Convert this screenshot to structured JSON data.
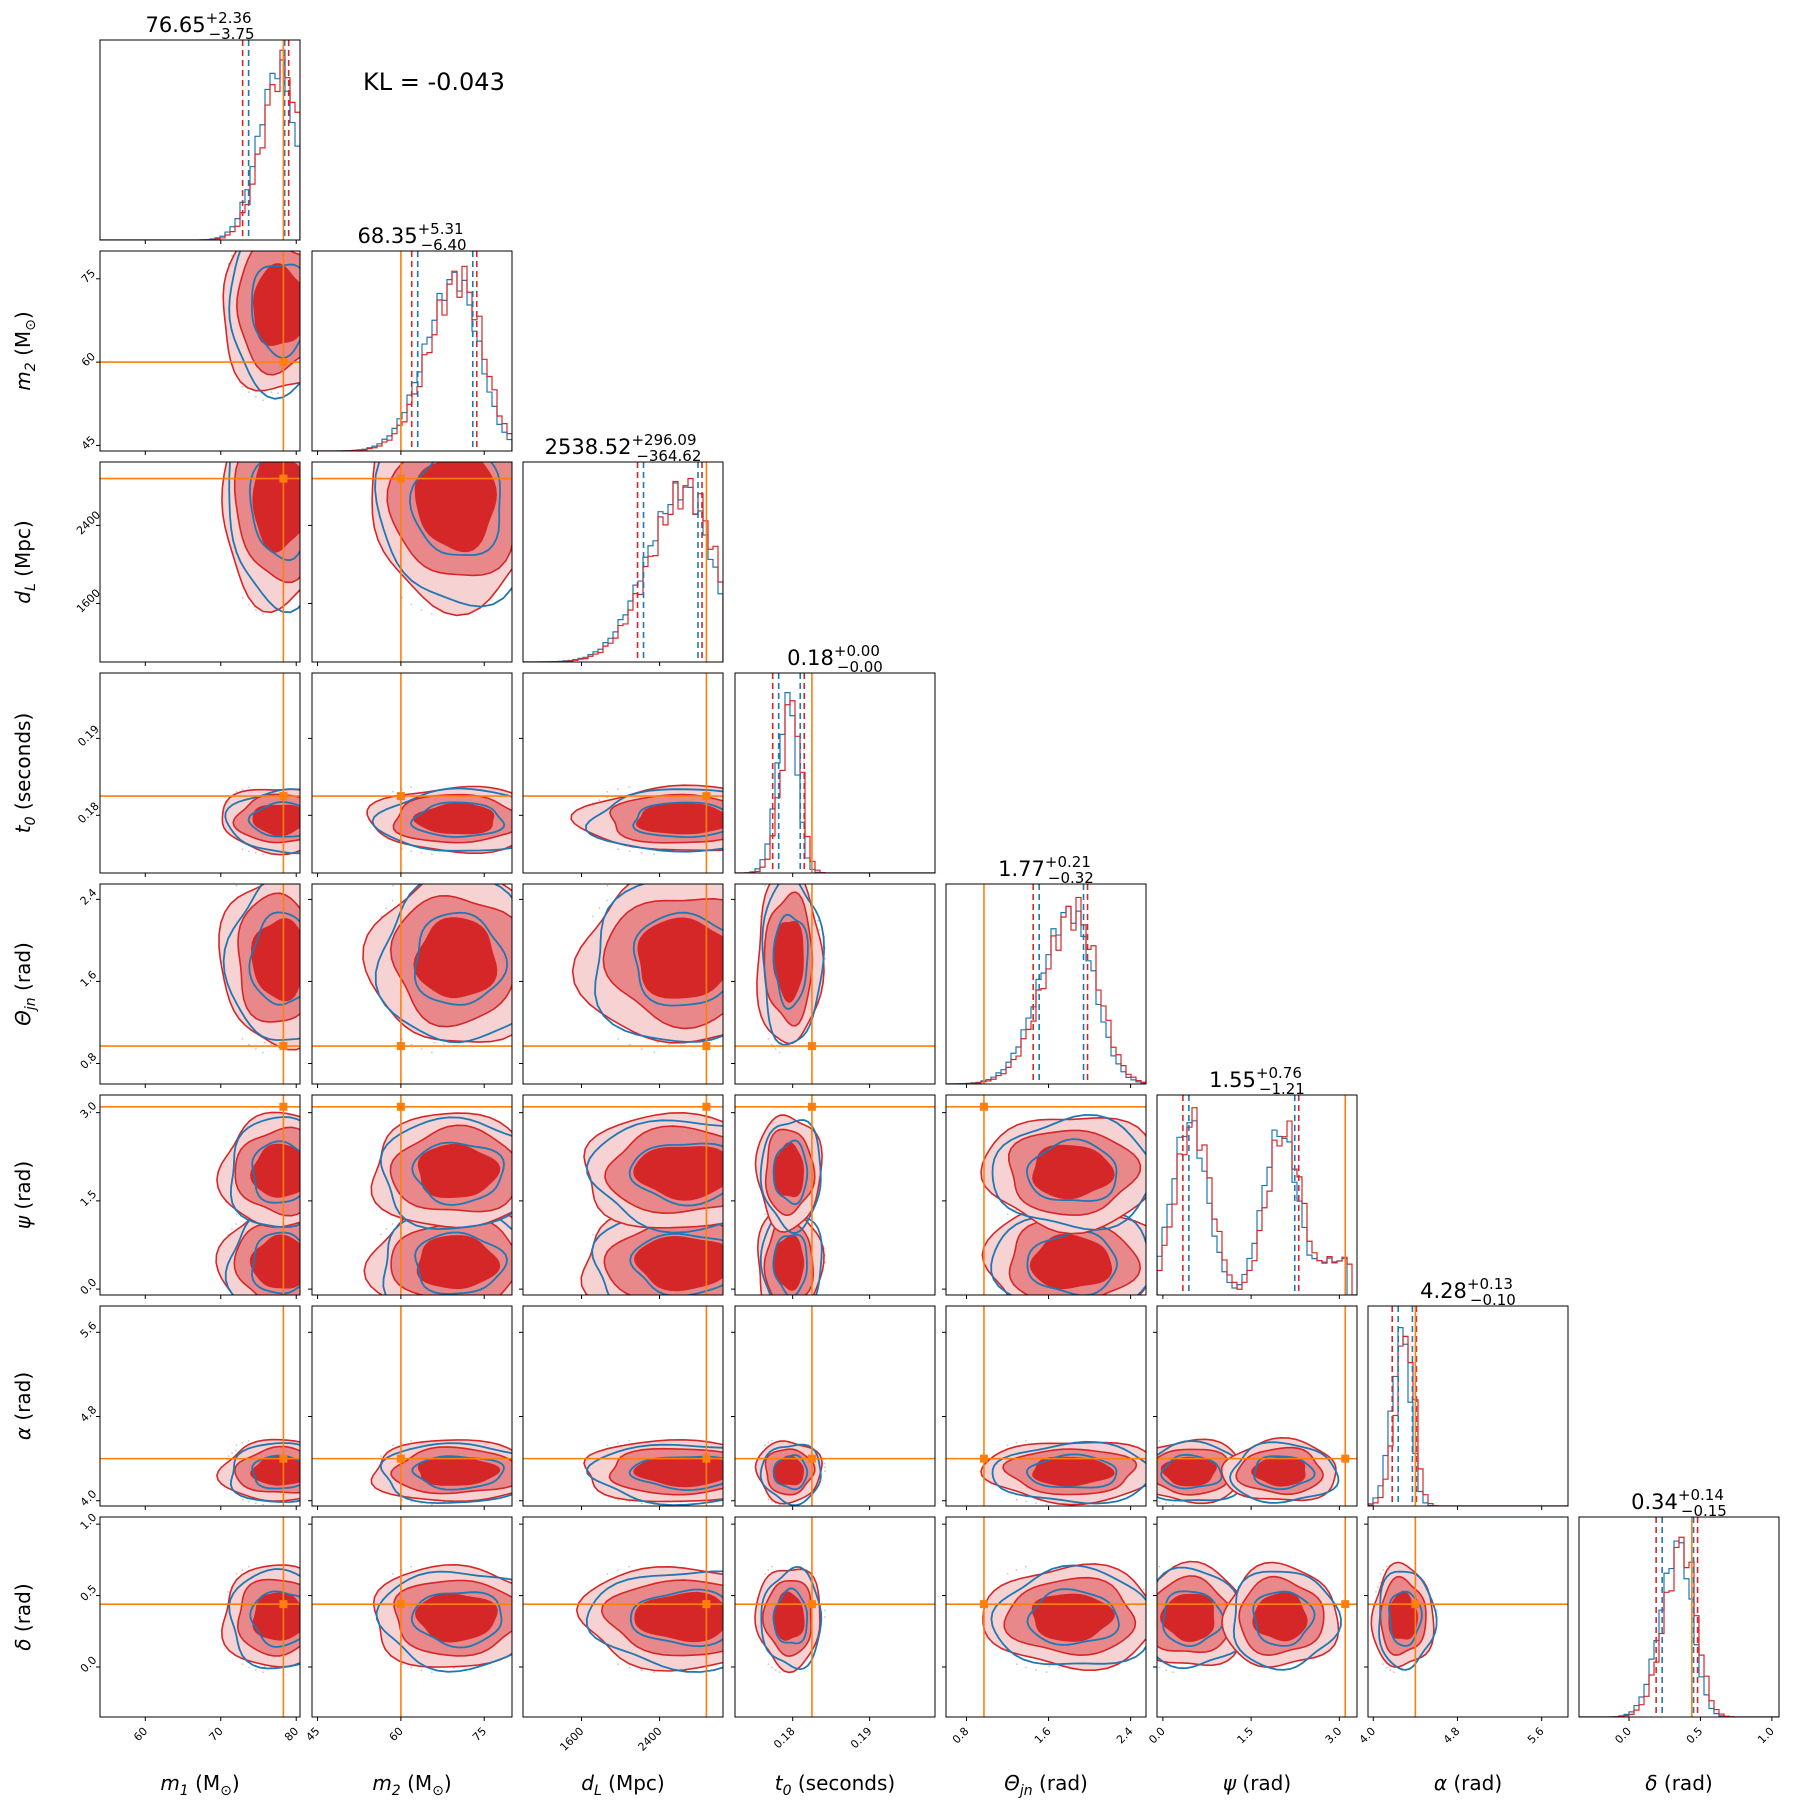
{
  "chart_data": {
    "type": "corner",
    "kl_annotation": "KL = -0.043",
    "colors": {
      "red": "#d62728",
      "red_mid": "#e8888a",
      "red_light": "#f6d2d2",
      "blue": "#1f77b4",
      "orange": "#ff7f0e"
    },
    "parameters": [
      {
        "key": "m1",
        "sym": "m",
        "sub": "1",
        "unit": "(M",
        "unit_sub": "⊙",
        "unit_end": ")",
        "range": [
          54,
          80.5
        ],
        "true": 78.3,
        "ticks": [
          60,
          70,
          80
        ],
        "tick_labels": [
          "60",
          "70",
          "80"
        ],
        "title_main": "76.65",
        "title_plus": "+2.36",
        "title_minus": "−3.75",
        "median": 76.65,
        "lo": 72.9,
        "hi": 79.0,
        "mode": 77.8,
        "sigma": 2.4,
        "bimodal": false
      },
      {
        "key": "m2",
        "sym": "m",
        "sub": "2",
        "unit": "(M",
        "unit_sub": "⊙",
        "unit_end": ")",
        "range": [
          44,
          80
        ],
        "true": 60,
        "ticks": [
          45,
          60,
          75
        ],
        "tick_labels": [
          "45",
          "60",
          "75"
        ],
        "title_main": "68.35",
        "title_plus": "+5.31",
        "title_minus": "−6.40",
        "median": 68.35,
        "lo": 61.95,
        "hi": 73.66,
        "mode": 70,
        "sigma": 4.8,
        "bimodal": false
      },
      {
        "key": "dL",
        "sym": "d",
        "sub": "L",
        "unit": "(Mpc)",
        "unit_sub": "",
        "unit_end": "",
        "range": [
          1000,
          3050
        ],
        "true": 2880,
        "ticks": [
          1600,
          2400
        ],
        "tick_labels": [
          "1600",
          "2400"
        ],
        "title_main": "2538.52",
        "title_plus": "+296.09",
        "title_minus": "−364.62",
        "median": 2538.52,
        "lo": 2173.9,
        "hi": 2834.6,
        "mode": 2650,
        "sigma": 330,
        "bimodal": false
      },
      {
        "key": "t0",
        "sym": "t",
        "sub": "0",
        "unit": "(seconds)",
        "unit_sub": "",
        "unit_end": "",
        "range": [
          0.1725,
          0.1985
        ],
        "true": 0.1825,
        "ticks": [
          0.18,
          0.19
        ],
        "tick_labels": [
          "0.18",
          "0.19"
        ],
        "title_main": "0.18",
        "title_plus": "+0.00",
        "title_minus": "−0.00",
        "median": 0.1795,
        "lo": 0.1774,
        "hi": 0.1815,
        "mode": 0.1795,
        "sigma": 0.0013,
        "bimodal": false
      },
      {
        "key": "theta",
        "sym": "Θ",
        "sub": "jn",
        "unit": "(rad)",
        "unit_sub": "",
        "unit_end": "",
        "range": [
          0.6,
          2.55
        ],
        "true": 0.97,
        "ticks": [
          0.8,
          1.6,
          2.4
        ],
        "tick_labels": [
          "0.8",
          "1.6",
          "2.4"
        ],
        "title_main": "1.77",
        "title_plus": "+0.21",
        "title_minus": "−0.32",
        "median": 1.77,
        "lo": 1.45,
        "hi": 1.98,
        "mode": 1.82,
        "sigma": 0.26,
        "bimodal": false
      },
      {
        "key": "psi",
        "sym": "ψ",
        "sub": "",
        "unit": "(rad)",
        "unit_sub": "",
        "unit_end": "",
        "range": [
          -0.1,
          3.3
        ],
        "true": 3.1,
        "ticks": [
          0.0,
          1.5,
          3.0
        ],
        "tick_labels": [
          "0.0",
          "1.5",
          "3.0"
        ],
        "title_main": "1.55",
        "title_plus": "+0.76",
        "title_minus": "−1.21",
        "median": 1.55,
        "lo": 0.34,
        "hi": 2.31,
        "mode": 0.45,
        "sigma": 0.3,
        "bimodal": true,
        "mode2": 2.0
      },
      {
        "key": "alpha",
        "sym": "α",
        "sub": "",
        "unit": "(rad)",
        "unit_sub": "",
        "unit_end": "",
        "range": [
          3.95,
          5.85
        ],
        "true": 4.4,
        "ticks": [
          4.0,
          4.8,
          5.6
        ],
        "tick_labels": [
          "4.0",
          "4.8",
          "5.6"
        ],
        "title_main": "4.28",
        "title_plus": "+0.13",
        "title_minus": "−0.10",
        "median": 4.28,
        "lo": 4.18,
        "hi": 4.41,
        "mode": 4.28,
        "sigma": 0.09,
        "bimodal": false
      },
      {
        "key": "delta",
        "sym": "δ",
        "sub": "",
        "unit": "(rad)",
        "unit_sub": "",
        "unit_end": "",
        "range": [
          -0.35,
          1.05
        ],
        "true": 0.44,
        "ticks": [
          0.0,
          0.5,
          1.0
        ],
        "tick_labels": [
          "0.0",
          "0.5",
          "1.0"
        ],
        "title_main": "0.34",
        "title_plus": "+0.14",
        "title_minus": "−0.15",
        "median": 0.34,
        "lo": 0.19,
        "hi": 0.48,
        "mode": 0.35,
        "sigma": 0.11,
        "bimodal": false
      }
    ]
  }
}
